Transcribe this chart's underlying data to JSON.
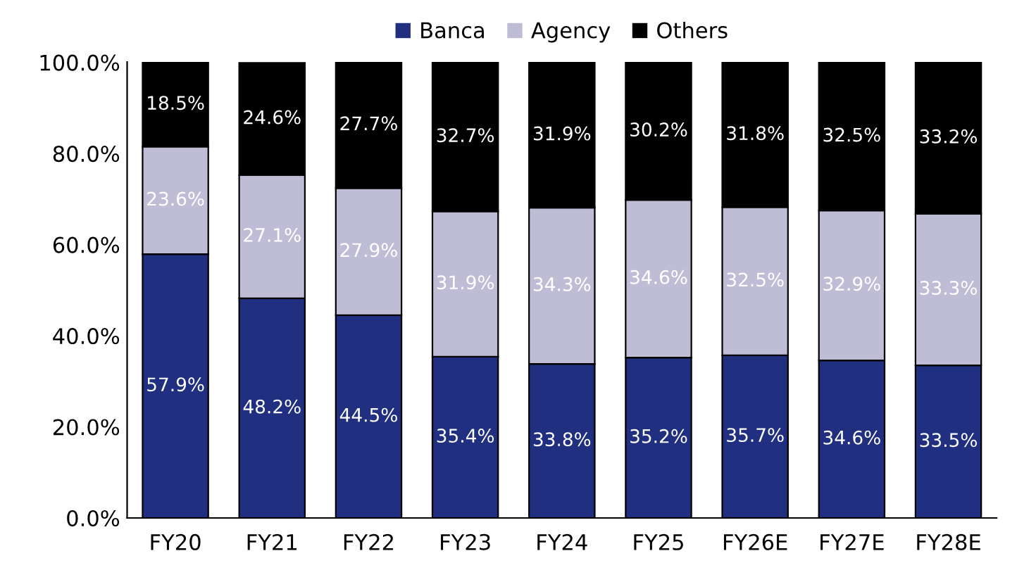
{
  "chart_data": {
    "type": "bar",
    "stacked": true,
    "categories": [
      "FY20",
      "FY21",
      "FY22",
      "FY23",
      "FY24",
      "FY25",
      "FY26E",
      "FY27E",
      "FY28E"
    ],
    "series": [
      {
        "name": "Banca",
        "color": "#202f80",
        "values": [
          57.9,
          48.2,
          44.5,
          35.4,
          33.8,
          35.2,
          35.7,
          34.6,
          33.5
        ],
        "value_labels": [
          "57.9%",
          "48.2%",
          "44.5%",
          "35.4%",
          "33.8%",
          "35.2%",
          "35.7%",
          "34.6%",
          "33.5%"
        ]
      },
      {
        "name": "Agency",
        "color": "#bfbdd5",
        "values": [
          23.6,
          27.1,
          27.9,
          31.9,
          34.3,
          34.6,
          32.5,
          32.9,
          33.3
        ],
        "value_labels": [
          "23.6%",
          "27.1%",
          "27.9%",
          "31.9%",
          "34.3%",
          "34.6%",
          "32.5%",
          "32.9%",
          "33.3%"
        ]
      },
      {
        "name": "Others",
        "color": "#000000",
        "values": [
          18.5,
          24.6,
          27.7,
          32.7,
          31.9,
          30.2,
          31.8,
          32.5,
          33.2
        ],
        "value_labels": [
          "18.5%",
          "24.6%",
          "27.7%",
          "32.7%",
          "31.9%",
          "30.2%",
          "31.8%",
          "32.5%",
          "33.2%"
        ]
      }
    ],
    "ylim": [
      0,
      100.1
    ],
    "yticks": [
      {
        "value": 0,
        "label": "0.0%"
      },
      {
        "value": 20,
        "label": "20.0%"
      },
      {
        "value": 40,
        "label": "40.0%"
      },
      {
        "value": 60,
        "label": "60.0%"
      },
      {
        "value": 80,
        "label": "80.0%"
      },
      {
        "value": 100,
        "label": "100.0%"
      }
    ],
    "legend": "top",
    "grid": false
  }
}
